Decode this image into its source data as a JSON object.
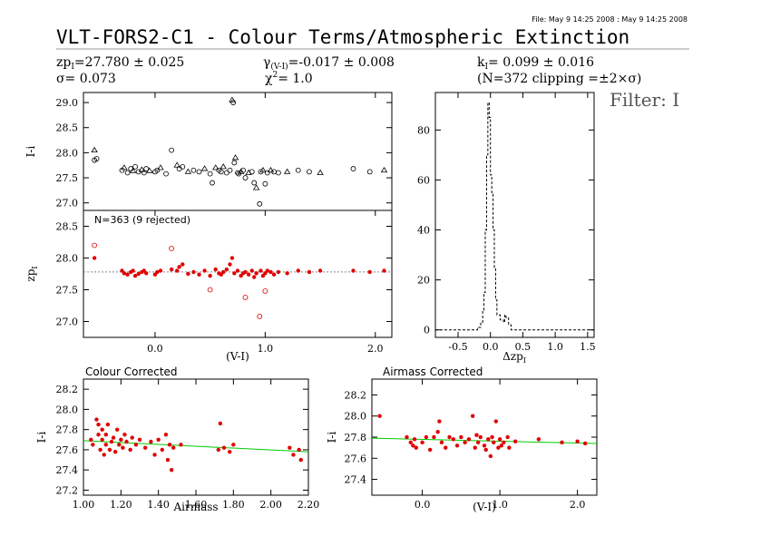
{
  "header": {
    "file_stamp": "File: May  9 14:25 2008 : May  9 14:25 2008",
    "title": "VLT-FORS2-C1 - Colour Terms/Atmospheric Extinction",
    "stat_zp": "zp",
    "stat_zp_sub": "I",
    "stat_zp_val": "=27.780 ± 0.025",
    "stat_sigma": "σ=  0.073",
    "stat_gamma": "γ",
    "stat_gamma_sub": "(V-I)",
    "stat_gamma_val": "=-0.017 ± 0.008",
    "stat_chi": "χ",
    "stat_chi_val": "=   1.0",
    "stat_k": "k",
    "stat_k_sub": "I",
    "stat_k_val": "=  0.099 ± 0.016",
    "stat_n": "(N=372 clipping =±2×σ)",
    "filter": "Filter: I"
  },
  "colors": {
    "data": "#e00000",
    "fit": "#00cc00",
    "raw": "#000000",
    "zp_line": "#888888"
  },
  "chart_data": [
    {
      "id": "raw_i",
      "type": "scatter",
      "ylabel": "I-i",
      "ylim": [
        26.85,
        29.2
      ],
      "xlim": [
        -0.65,
        2.15
      ],
      "yticks": [
        "27.0",
        "27.5",
        "28.0",
        "28.5",
        "29.0"
      ],
      "markers": "open circles and triangles",
      "points": [
        [
          -0.55,
          27.85
        ],
        [
          -0.55,
          28.05
        ],
        [
          -0.53,
          27.88
        ],
        [
          -0.3,
          27.65
        ],
        [
          -0.28,
          27.7
        ],
        [
          -0.25,
          27.6
        ],
        [
          -0.22,
          27.68
        ],
        [
          -0.2,
          27.64
        ],
        [
          -0.18,
          27.72
        ],
        [
          -0.15,
          27.62
        ],
        [
          -0.12,
          27.66
        ],
        [
          -0.1,
          27.6
        ],
        [
          -0.08,
          27.68
        ],
        [
          -0.05,
          27.64
        ],
        [
          0.0,
          27.62
        ],
        [
          0.02,
          27.65
        ],
        [
          0.05,
          27.7
        ],
        [
          0.1,
          27.58
        ],
        [
          0.15,
          28.05
        ],
        [
          0.2,
          27.75
        ],
        [
          0.22,
          27.68
        ],
        [
          0.25,
          27.72
        ],
        [
          0.3,
          27.62
        ],
        [
          0.35,
          27.65
        ],
        [
          0.4,
          27.62
        ],
        [
          0.45,
          27.68
        ],
        [
          0.5,
          27.58
        ],
        [
          0.52,
          27.4
        ],
        [
          0.55,
          27.7
        ],
        [
          0.58,
          27.65
        ],
        [
          0.6,
          27.62
        ],
        [
          0.62,
          27.72
        ],
        [
          0.65,
          27.6
        ],
        [
          0.68,
          27.65
        ],
        [
          0.7,
          29.05
        ],
        [
          0.71,
          29.0
        ],
        [
          0.72,
          27.8
        ],
        [
          0.73,
          27.9
        ],
        [
          0.75,
          27.6
        ],
        [
          0.76,
          27.58
        ],
        [
          0.78,
          27.62
        ],
        [
          0.8,
          27.65
        ],
        [
          0.82,
          27.5
        ],
        [
          0.85,
          27.6
        ],
        [
          0.88,
          27.62
        ],
        [
          0.9,
          27.4
        ],
        [
          0.92,
          27.3
        ],
        [
          0.95,
          26.98
        ],
        [
          0.96,
          27.62
        ],
        [
          0.98,
          27.65
        ],
        [
          1.0,
          27.38
        ],
        [
          1.02,
          27.6
        ],
        [
          1.05,
          27.65
        ],
        [
          1.08,
          27.62
        ],
        [
          1.12,
          27.6
        ],
        [
          1.2,
          27.62
        ],
        [
          1.3,
          27.65
        ],
        [
          1.4,
          27.62
        ],
        [
          1.5,
          27.6
        ],
        [
          1.8,
          27.68
        ],
        [
          1.95,
          27.62
        ],
        [
          2.08,
          27.65
        ]
      ]
    },
    {
      "id": "zp",
      "type": "scatter",
      "annotation": "N=363 (9 rejected)",
      "xlabel": "(V-I)",
      "ylabel": "zp",
      "ylabel_sub": "I",
      "ylim": [
        26.75,
        28.75
      ],
      "xlim": [
        -0.65,
        2.15
      ],
      "xticks": [
        "0.0",
        "1.0",
        "2.0"
      ],
      "yticks": [
        "27.0",
        "27.5",
        "28.0",
        "28.5"
      ],
      "zp_line": 27.78,
      "filled_points": [
        [
          -0.55,
          28.0
        ],
        [
          -0.3,
          27.8
        ],
        [
          -0.28,
          27.76
        ],
        [
          -0.25,
          27.74
        ],
        [
          -0.22,
          27.78
        ],
        [
          -0.2,
          27.8
        ],
        [
          -0.18,
          27.72
        ],
        [
          -0.15,
          27.75
        ],
        [
          -0.12,
          27.78
        ],
        [
          -0.1,
          27.8
        ],
        [
          -0.08,
          27.76
        ],
        [
          0.0,
          27.74
        ],
        [
          0.02,
          27.78
        ],
        [
          0.05,
          27.8
        ],
        [
          0.15,
          27.82
        ],
        [
          0.2,
          27.8
        ],
        [
          0.22,
          27.86
        ],
        [
          0.25,
          27.9
        ],
        [
          0.3,
          27.75
        ],
        [
          0.35,
          27.78
        ],
        [
          0.4,
          27.74
        ],
        [
          0.45,
          27.8
        ],
        [
          0.5,
          27.72
        ],
        [
          0.55,
          27.82
        ],
        [
          0.58,
          27.76
        ],
        [
          0.6,
          27.74
        ],
        [
          0.62,
          27.78
        ],
        [
          0.65,
          27.82
        ],
        [
          0.68,
          27.9
        ],
        [
          0.7,
          28.0
        ],
        [
          0.72,
          27.76
        ],
        [
          0.75,
          27.8
        ],
        [
          0.78,
          27.72
        ],
        [
          0.8,
          27.76
        ],
        [
          0.82,
          27.78
        ],
        [
          0.85,
          27.74
        ],
        [
          0.88,
          27.8
        ],
        [
          0.9,
          27.7
        ],
        [
          0.92,
          27.76
        ],
        [
          0.96,
          27.8
        ],
        [
          0.98,
          27.72
        ],
        [
          1.0,
          27.76
        ],
        [
          1.02,
          27.8
        ],
        [
          1.05,
          27.78
        ],
        [
          1.08,
          27.74
        ],
        [
          1.12,
          27.78
        ],
        [
          1.2,
          27.76
        ],
        [
          1.3,
          27.8
        ],
        [
          1.4,
          27.78
        ],
        [
          1.5,
          27.8
        ],
        [
          1.8,
          27.8
        ],
        [
          1.95,
          27.78
        ],
        [
          2.08,
          27.8
        ]
      ],
      "open_points": [
        [
          -0.55,
          28.2
        ],
        [
          0.15,
          28.15
        ],
        [
          0.5,
          27.5
        ],
        [
          0.82,
          27.38
        ],
        [
          0.95,
          27.08
        ],
        [
          1.0,
          27.48
        ]
      ]
    },
    {
      "id": "delta_zp_hist",
      "type": "histogram",
      "xlabel": "Δzp",
      "xlabel_sub": "I",
      "xlim": [
        -0.85,
        1.6
      ],
      "ylim": [
        -3,
        95
      ],
      "xticks": [
        "-0.5",
        "0.0",
        "0.5",
        "1.0",
        "1.5"
      ],
      "yticks": [
        "0",
        "20",
        "40",
        "60",
        "80"
      ],
      "bins": [
        [
          -0.85,
          0
        ],
        [
          -0.3,
          0
        ],
        [
          -0.2,
          1
        ],
        [
          -0.15,
          3
        ],
        [
          -0.12,
          8
        ],
        [
          -0.1,
          15
        ],
        [
          -0.08,
          40
        ],
        [
          -0.06,
          70
        ],
        [
          -0.04,
          91
        ],
        [
          -0.02,
          85
        ],
        [
          0.0,
          62
        ],
        [
          0.02,
          55
        ],
        [
          0.04,
          40
        ],
        [
          0.06,
          25
        ],
        [
          0.08,
          12
        ],
        [
          0.1,
          6
        ],
        [
          0.15,
          4
        ],
        [
          0.2,
          3
        ],
        [
          0.22,
          6
        ],
        [
          0.24,
          5
        ],
        [
          0.28,
          2
        ],
        [
          0.32,
          0
        ],
        [
          1.6,
          0
        ]
      ]
    },
    {
      "id": "colour_corrected",
      "type": "scatter",
      "title": "Colour Corrected",
      "xlabel": "Airmass",
      "ylabel": "I-i",
      "ylim": [
        27.15,
        28.3
      ],
      "xlim": [
        1.0,
        2.2
      ],
      "xticks": [
        "1.00",
        "1.20",
        "1.40",
        "1.60",
        "1.80",
        "2.00",
        "2.20"
      ],
      "yticks": [
        "27.2",
        "27.4",
        "27.6",
        "27.8",
        "28.0",
        "28.2"
      ],
      "fit": [
        [
          1.0,
          27.69
        ],
        [
          2.2,
          27.58
        ]
      ],
      "points": [
        [
          1.04,
          27.7
        ],
        [
          1.05,
          27.65
        ],
        [
          1.07,
          27.9
        ],
        [
          1.08,
          27.85
        ],
        [
          1.08,
          27.75
        ],
        [
          1.09,
          27.6
        ],
        [
          1.1,
          27.7
        ],
        [
          1.1,
          27.8
        ],
        [
          1.11,
          27.55
        ],
        [
          1.12,
          27.65
        ],
        [
          1.12,
          27.75
        ],
        [
          1.13,
          27.85
        ],
        [
          1.14,
          27.6
        ],
        [
          1.15,
          27.68
        ],
        [
          1.16,
          27.72
        ],
        [
          1.17,
          27.58
        ],
        [
          1.18,
          27.8
        ],
        [
          1.19,
          27.65
        ],
        [
          1.2,
          27.7
        ],
        [
          1.21,
          27.62
        ],
        [
          1.22,
          27.75
        ],
        [
          1.23,
          27.68
        ],
        [
          1.25,
          27.6
        ],
        [
          1.26,
          27.72
        ],
        [
          1.28,
          27.65
        ],
        [
          1.3,
          27.7
        ],
        [
          1.33,
          27.62
        ],
        [
          1.36,
          27.68
        ],
        [
          1.38,
          27.55
        ],
        [
          1.4,
          27.7
        ],
        [
          1.42,
          27.6
        ],
        [
          1.44,
          27.75
        ],
        [
          1.45,
          27.5
        ],
        [
          1.46,
          27.65
        ],
        [
          1.47,
          27.4
        ],
        [
          1.48,
          27.62
        ],
        [
          1.52,
          27.65
        ],
        [
          1.72,
          27.6
        ],
        [
          1.73,
          27.86
        ],
        [
          1.75,
          27.62
        ],
        [
          1.78,
          27.58
        ],
        [
          1.8,
          27.65
        ],
        [
          2.1,
          27.62
        ],
        [
          2.12,
          27.55
        ],
        [
          2.15,
          27.6
        ],
        [
          2.16,
          27.5
        ]
      ]
    },
    {
      "id": "airmass_corrected",
      "type": "scatter",
      "title": "Airmass Corrected",
      "xlabel": "(V-I)",
      "ylabel": "I-i",
      "ylim": [
        27.25,
        28.35
      ],
      "xlim": [
        -0.65,
        2.25
      ],
      "xticks": [
        "0.0",
        "1.0",
        "2.0"
      ],
      "yticks": [
        "27.4",
        "27.6",
        "27.8",
        "28.0",
        "28.2"
      ],
      "fit": [
        [
          -0.65,
          27.79
        ],
        [
          2.25,
          27.74
        ]
      ],
      "points": [
        [
          -0.55,
          28.0
        ],
        [
          -0.2,
          27.8
        ],
        [
          -0.15,
          27.75
        ],
        [
          -0.12,
          27.72
        ],
        [
          -0.1,
          27.78
        ],
        [
          -0.08,
          27.7
        ],
        [
          0.0,
          27.75
        ],
        [
          0.05,
          27.8
        ],
        [
          0.1,
          27.68
        ],
        [
          0.15,
          27.8
        ],
        [
          0.2,
          27.85
        ],
        [
          0.22,
          27.95
        ],
        [
          0.25,
          27.75
        ],
        [
          0.3,
          27.7
        ],
        [
          0.35,
          27.8
        ],
        [
          0.4,
          27.78
        ],
        [
          0.45,
          27.72
        ],
        [
          0.5,
          27.8
        ],
        [
          0.55,
          27.75
        ],
        [
          0.6,
          27.78
        ],
        [
          0.65,
          28.0
        ],
        [
          0.68,
          27.7
        ],
        [
          0.7,
          27.82
        ],
        [
          0.72,
          27.75
        ],
        [
          0.75,
          27.8
        ],
        [
          0.8,
          27.72
        ],
        [
          0.82,
          27.68
        ],
        [
          0.85,
          27.78
        ],
        [
          0.88,
          27.62
        ],
        [
          0.9,
          27.8
        ],
        [
          0.92,
          27.75
        ],
        [
          0.95,
          27.95
        ],
        [
          0.98,
          27.7
        ],
        [
          1.0,
          27.78
        ],
        [
          1.02,
          27.72
        ],
        [
          1.05,
          27.75
        ],
        [
          1.1,
          27.8
        ],
        [
          1.12,
          27.7
        ],
        [
          1.2,
          27.76
        ],
        [
          1.5,
          27.78
        ],
        [
          1.8,
          27.75
        ],
        [
          2.0,
          27.76
        ],
        [
          2.1,
          27.74
        ]
      ]
    }
  ]
}
